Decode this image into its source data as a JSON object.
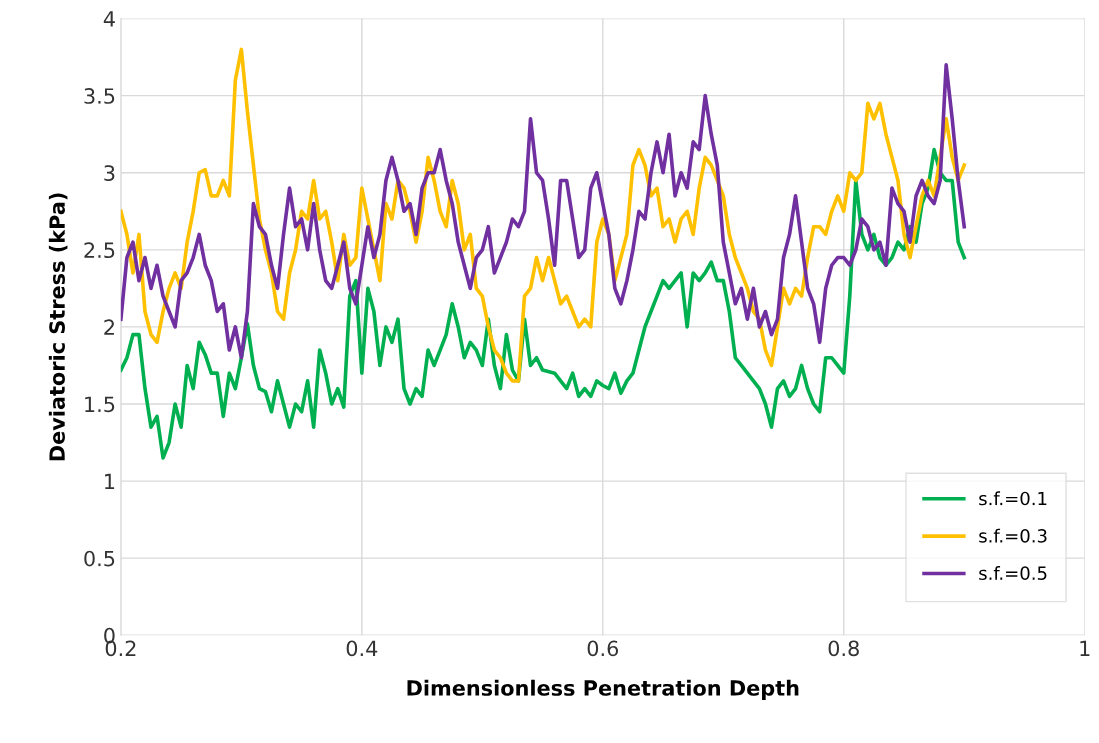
{
  "chart_data": {
    "type": "line",
    "xlabel": "Dimensionless Penetration Depth",
    "ylabel": "Deviatoric Stress (kPa)",
    "xlim": [
      0.2,
      1
    ],
    "xticks": [
      0.2,
      0.4,
      0.6,
      0.8,
      1
    ],
    "ylim": [
      0,
      4
    ],
    "yticks": [
      0,
      0.5,
      1,
      1.5,
      2,
      2.5,
      3,
      3.5,
      4
    ],
    "grid": true,
    "legend": "bottom right",
    "marker": "none",
    "line_style": "solid",
    "series": [
      {
        "name": "s.f.=0.1",
        "color": "#00b050",
        "x": [
          0.2,
          0.205,
          0.21,
          0.215,
          0.22,
          0.225,
          0.23,
          0.235,
          0.24,
          0.245,
          0.25,
          0.255,
          0.26,
          0.265,
          0.27,
          0.275,
          0.28,
          0.285,
          0.29,
          0.295,
          0.3,
          0.305,
          0.31,
          0.315,
          0.32,
          0.325,
          0.33,
          0.335,
          0.34,
          0.345,
          0.35,
          0.355,
          0.36,
          0.365,
          0.37,
          0.375,
          0.38,
          0.385,
          0.39,
          0.395,
          0.4,
          0.405,
          0.41,
          0.415,
          0.42,
          0.425,
          0.43,
          0.435,
          0.44,
          0.445,
          0.45,
          0.455,
          0.46,
          0.465,
          0.47,
          0.475,
          0.48,
          0.485,
          0.49,
          0.495,
          0.5,
          0.505,
          0.51,
          0.515,
          0.52,
          0.525,
          0.53,
          0.535,
          0.54,
          0.545,
          0.55,
          0.56,
          0.57,
          0.575,
          0.58,
          0.585,
          0.59,
          0.595,
          0.6,
          0.605,
          0.61,
          0.615,
          0.62,
          0.625,
          0.63,
          0.635,
          0.64,
          0.645,
          0.65,
          0.655,
          0.66,
          0.665,
          0.67,
          0.675,
          0.68,
          0.685,
          0.69,
          0.695,
          0.7,
          0.705,
          0.71,
          0.715,
          0.72,
          0.725,
          0.73,
          0.735,
          0.74,
          0.745,
          0.75,
          0.755,
          0.76,
          0.765,
          0.77,
          0.775,
          0.78,
          0.785,
          0.79,
          0.795,
          0.8,
          0.805,
          0.81,
          0.815,
          0.82,
          0.825,
          0.83,
          0.835,
          0.84,
          0.845,
          0.85,
          0.855,
          0.86,
          0.865,
          0.87,
          0.875,
          0.88,
          0.885,
          0.89,
          0.895,
          0.9
        ],
        "values": [
          1.72,
          1.8,
          1.95,
          1.95,
          1.6,
          1.35,
          1.42,
          1.15,
          1.25,
          1.5,
          1.35,
          1.75,
          1.6,
          1.9,
          1.82,
          1.7,
          1.7,
          1.42,
          1.7,
          1.6,
          1.8,
          2.02,
          1.75,
          1.6,
          1.58,
          1.45,
          1.65,
          1.5,
          1.35,
          1.5,
          1.45,
          1.65,
          1.35,
          1.85,
          1.7,
          1.5,
          1.6,
          1.48,
          2.2,
          2.3,
          1.7,
          2.25,
          2.1,
          1.75,
          2.0,
          1.9,
          2.05,
          1.6,
          1.5,
          1.6,
          1.55,
          1.85,
          1.75,
          1.85,
          1.95,
          2.15,
          2.0,
          1.8,
          1.9,
          1.85,
          1.75,
          2.05,
          1.75,
          1.6,
          1.95,
          1.72,
          1.65,
          2.05,
          1.75,
          1.8,
          1.72,
          1.7,
          1.6,
          1.7,
          1.55,
          1.6,
          1.55,
          1.65,
          1.62,
          1.6,
          1.7,
          1.57,
          1.65,
          1.7,
          1.85,
          2.0,
          2.1,
          2.2,
          2.3,
          2.25,
          2.3,
          2.35,
          2.0,
          2.35,
          2.3,
          2.35,
          2.42,
          2.3,
          2.3,
          2.1,
          1.8,
          1.75,
          1.7,
          1.65,
          1.6,
          1.5,
          1.35,
          1.6,
          1.65,
          1.55,
          1.6,
          1.75,
          1.6,
          1.5,
          1.45,
          1.8,
          1.8,
          1.75,
          1.7,
          2.2,
          2.95,
          2.6,
          2.5,
          2.6,
          2.45,
          2.4,
          2.45,
          2.55,
          2.5,
          2.65,
          2.55,
          2.8,
          2.9,
          3.15,
          3.0,
          2.95,
          2.95,
          2.55,
          2.45
        ]
      },
      {
        "name": "s.f.=0.3",
        "color": "#ffc000",
        "x": [
          0.2,
          0.205,
          0.21,
          0.215,
          0.22,
          0.225,
          0.23,
          0.235,
          0.24,
          0.245,
          0.25,
          0.255,
          0.26,
          0.265,
          0.27,
          0.275,
          0.28,
          0.285,
          0.29,
          0.295,
          0.3,
          0.305,
          0.31,
          0.315,
          0.32,
          0.325,
          0.33,
          0.335,
          0.34,
          0.345,
          0.35,
          0.355,
          0.36,
          0.365,
          0.37,
          0.375,
          0.38,
          0.385,
          0.39,
          0.395,
          0.4,
          0.405,
          0.41,
          0.415,
          0.42,
          0.425,
          0.43,
          0.435,
          0.44,
          0.445,
          0.45,
          0.455,
          0.46,
          0.465,
          0.47,
          0.475,
          0.48,
          0.485,
          0.49,
          0.495,
          0.5,
          0.505,
          0.51,
          0.515,
          0.52,
          0.525,
          0.53,
          0.535,
          0.54,
          0.545,
          0.55,
          0.555,
          0.56,
          0.565,
          0.57,
          0.575,
          0.58,
          0.585,
          0.59,
          0.595,
          0.6,
          0.605,
          0.61,
          0.615,
          0.62,
          0.625,
          0.63,
          0.635,
          0.64,
          0.645,
          0.65,
          0.655,
          0.66,
          0.665,
          0.67,
          0.675,
          0.68,
          0.685,
          0.69,
          0.695,
          0.7,
          0.705,
          0.71,
          0.715,
          0.72,
          0.725,
          0.73,
          0.735,
          0.74,
          0.745,
          0.75,
          0.755,
          0.76,
          0.765,
          0.77,
          0.775,
          0.78,
          0.785,
          0.79,
          0.795,
          0.8,
          0.805,
          0.81,
          0.815,
          0.82,
          0.825,
          0.83,
          0.835,
          0.84,
          0.845,
          0.85,
          0.855,
          0.86,
          0.865,
          0.87,
          0.875,
          0.88,
          0.885,
          0.89,
          0.895,
          0.9
        ],
        "values": [
          2.75,
          2.6,
          2.35,
          2.6,
          2.1,
          1.95,
          1.9,
          2.1,
          2.25,
          2.35,
          2.25,
          2.55,
          2.75,
          3.0,
          3.02,
          2.85,
          2.85,
          2.95,
          2.85,
          3.6,
          3.8,
          3.4,
          3.05,
          2.7,
          2.5,
          2.35,
          2.1,
          2.05,
          2.35,
          2.5,
          2.75,
          2.7,
          2.95,
          2.7,
          2.75,
          2.55,
          2.3,
          2.6,
          2.4,
          2.45,
          2.9,
          2.7,
          2.5,
          2.3,
          2.8,
          2.7,
          2.95,
          2.9,
          2.75,
          2.55,
          2.75,
          3.1,
          2.95,
          2.75,
          2.65,
          2.95,
          2.8,
          2.5,
          2.6,
          2.25,
          2.2,
          2.0,
          1.85,
          1.8,
          1.7,
          1.65,
          1.65,
          2.2,
          2.25,
          2.45,
          2.3,
          2.45,
          2.3,
          2.15,
          2.2,
          2.1,
          2.0,
          2.05,
          2.0,
          2.55,
          2.7,
          2.6,
          2.3,
          2.45,
          2.6,
          3.05,
          3.15,
          3.05,
          2.85,
          2.9,
          2.65,
          2.7,
          2.55,
          2.7,
          2.75,
          2.6,
          2.9,
          3.1,
          3.05,
          2.95,
          2.85,
          2.6,
          2.45,
          2.35,
          2.25,
          2.1,
          2.05,
          1.85,
          1.75,
          2.0,
          2.25,
          2.15,
          2.25,
          2.2,
          2.45,
          2.65,
          2.65,
          2.6,
          2.75,
          2.85,
          2.75,
          3.0,
          2.95,
          3.0,
          3.45,
          3.35,
          3.45,
          3.25,
          3.1,
          2.95,
          2.6,
          2.45,
          2.65,
          2.85,
          2.95,
          2.85,
          3.1,
          3.35,
          3.1,
          2.95,
          3.05
        ]
      },
      {
        "name": "s.f.=0.5",
        "color": "#7030a0",
        "x": [
          0.2,
          0.205,
          0.21,
          0.215,
          0.22,
          0.225,
          0.23,
          0.235,
          0.24,
          0.245,
          0.25,
          0.255,
          0.26,
          0.265,
          0.27,
          0.275,
          0.28,
          0.285,
          0.29,
          0.295,
          0.3,
          0.305,
          0.31,
          0.315,
          0.32,
          0.325,
          0.33,
          0.335,
          0.34,
          0.345,
          0.35,
          0.355,
          0.36,
          0.365,
          0.37,
          0.375,
          0.38,
          0.385,
          0.39,
          0.395,
          0.4,
          0.405,
          0.41,
          0.415,
          0.42,
          0.425,
          0.43,
          0.435,
          0.44,
          0.445,
          0.45,
          0.455,
          0.46,
          0.465,
          0.47,
          0.475,
          0.48,
          0.485,
          0.49,
          0.495,
          0.5,
          0.505,
          0.51,
          0.515,
          0.52,
          0.525,
          0.53,
          0.535,
          0.54,
          0.545,
          0.55,
          0.555,
          0.56,
          0.565,
          0.57,
          0.575,
          0.58,
          0.585,
          0.59,
          0.595,
          0.6,
          0.605,
          0.61,
          0.615,
          0.62,
          0.625,
          0.63,
          0.635,
          0.64,
          0.645,
          0.65,
          0.655,
          0.66,
          0.665,
          0.67,
          0.675,
          0.68,
          0.685,
          0.69,
          0.695,
          0.7,
          0.705,
          0.71,
          0.715,
          0.72,
          0.725,
          0.73,
          0.735,
          0.74,
          0.745,
          0.75,
          0.755,
          0.76,
          0.765,
          0.77,
          0.775,
          0.78,
          0.785,
          0.79,
          0.795,
          0.8,
          0.805,
          0.81,
          0.815,
          0.82,
          0.825,
          0.83,
          0.835,
          0.84,
          0.845,
          0.85,
          0.855,
          0.86,
          0.865,
          0.87,
          0.875,
          0.88,
          0.885,
          0.89,
          0.895,
          0.9
        ],
        "values": [
          2.05,
          2.45,
          2.55,
          2.3,
          2.45,
          2.25,
          2.4,
          2.2,
          2.1,
          2.0,
          2.3,
          2.35,
          2.45,
          2.6,
          2.4,
          2.3,
          2.1,
          2.15,
          1.85,
          2.0,
          1.8,
          2.1,
          2.8,
          2.65,
          2.6,
          2.4,
          2.25,
          2.6,
          2.9,
          2.65,
          2.7,
          2.5,
          2.8,
          2.5,
          2.3,
          2.25,
          2.4,
          2.55,
          2.25,
          2.15,
          2.4,
          2.65,
          2.45,
          2.6,
          2.95,
          3.1,
          2.95,
          2.75,
          2.8,
          2.6,
          2.9,
          3.0,
          3.0,
          3.15,
          2.95,
          2.8,
          2.55,
          2.4,
          2.25,
          2.45,
          2.5,
          2.65,
          2.35,
          2.45,
          2.55,
          2.7,
          2.65,
          2.75,
          3.35,
          3.0,
          2.95,
          2.7,
          2.4,
          2.95,
          2.95,
          2.7,
          2.45,
          2.5,
          2.9,
          3.0,
          2.8,
          2.6,
          2.25,
          2.15,
          2.3,
          2.5,
          2.75,
          2.7,
          3.0,
          3.2,
          3.0,
          3.25,
          2.85,
          3.0,
          2.9,
          3.2,
          3.15,
          3.5,
          3.25,
          3.05,
          2.55,
          2.35,
          2.15,
          2.25,
          2.05,
          2.25,
          2.0,
          2.1,
          1.95,
          2.05,
          2.45,
          2.6,
          2.85,
          2.55,
          2.25,
          2.15,
          1.9,
          2.25,
          2.4,
          2.45,
          2.45,
          2.4,
          2.5,
          2.7,
          2.65,
          2.5,
          2.55,
          2.4,
          2.9,
          2.8,
          2.75,
          2.55,
          2.85,
          2.95,
          2.85,
          2.8,
          2.95,
          3.7,
          3.35,
          2.95,
          2.65
        ]
      }
    ]
  }
}
